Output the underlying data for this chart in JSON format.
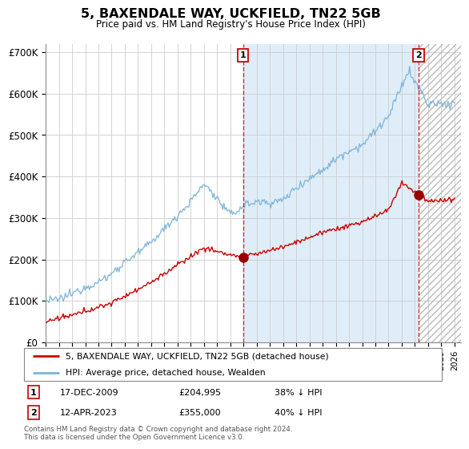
{
  "title": "5, BAXENDALE WAY, UCKFIELD, TN22 5GB",
  "subtitle": "Price paid vs. HM Land Registry's House Price Index (HPI)",
  "ylim": [
    0,
    720000
  ],
  "yticks": [
    0,
    100000,
    200000,
    300000,
    400000,
    500000,
    600000,
    700000
  ],
  "ytick_labels": [
    "£0",
    "£100K",
    "£200K",
    "£300K",
    "£400K",
    "£500K",
    "£600K",
    "£700K"
  ],
  "sale1_date_label": "17-DEC-2009",
  "sale1_price_label": "£204,995",
  "sale1_hpi_label": "38% ↓ HPI",
  "sale2_date_label": "12-APR-2023",
  "sale2_price_label": "£355,000",
  "sale2_hpi_label": "40% ↓ HPI",
  "legend_red": "5, BAXENDALE WAY, UCKFIELD, TN22 5GB (detached house)",
  "legend_blue": "HPI: Average price, detached house, Wealden",
  "footer": "Contains HM Land Registry data © Crown copyright and database right 2024.\nThis data is licensed under the Open Government Licence v3.0.",
  "hpi_color": "#7ab3d8",
  "price_color": "#cc0000",
  "bg_fill_color": "#daeaf7",
  "grid_color": "#cccccc",
  "sale1_year": 2009.96,
  "sale2_year": 2023.28,
  "sale1_price": 204995,
  "sale2_price": 355000,
  "xmin": 1995,
  "xmax": 2026.5
}
